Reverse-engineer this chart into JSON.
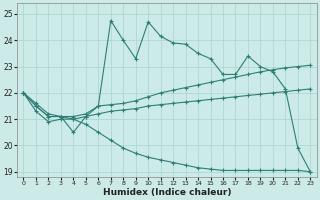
{
  "xlabel": "Humidex (Indice chaleur)",
  "xlim": [
    -0.5,
    23.5
  ],
  "ylim": [
    18.8,
    25.4
  ],
  "yticks": [
    19,
    20,
    21,
    22,
    23,
    24,
    25
  ],
  "xticks": [
    0,
    1,
    2,
    3,
    4,
    5,
    6,
    7,
    8,
    9,
    10,
    11,
    12,
    13,
    14,
    15,
    16,
    17,
    18,
    19,
    20,
    21,
    22,
    23
  ],
  "bg_color": "#cceae7",
  "line_color": "#2d7f75",
  "grid_color": "#aad4d0",
  "series": [
    [
      22.0,
      21.5,
      21.1,
      21.1,
      20.5,
      21.1,
      21.5,
      24.75,
      24.0,
      23.3,
      24.7,
      24.15,
      23.9,
      23.85,
      23.5,
      23.3,
      22.7,
      22.7,
      23.4,
      23.0,
      22.8,
      22.15,
      19.9,
      19.0
    ],
    [
      22.0,
      21.5,
      21.1,
      21.1,
      21.1,
      21.2,
      21.5,
      21.55,
      21.6,
      21.7,
      21.85,
      22.0,
      22.1,
      22.2,
      22.3,
      22.4,
      22.5,
      22.6,
      22.7,
      22.8,
      22.88,
      22.95,
      23.0,
      23.05
    ],
    [
      22.0,
      21.6,
      21.2,
      21.1,
      21.0,
      21.1,
      21.2,
      21.3,
      21.35,
      21.4,
      21.5,
      21.55,
      21.6,
      21.65,
      21.7,
      21.75,
      21.8,
      21.85,
      21.9,
      21.95,
      22.0,
      22.05,
      22.1,
      22.15
    ],
    [
      22.0,
      21.3,
      20.9,
      21.0,
      21.0,
      20.8,
      20.5,
      20.2,
      19.9,
      19.7,
      19.55,
      19.45,
      19.35,
      19.25,
      19.15,
      19.1,
      19.05,
      19.05,
      19.05,
      19.05,
      19.05,
      19.05,
      19.05,
      19.0
    ]
  ]
}
